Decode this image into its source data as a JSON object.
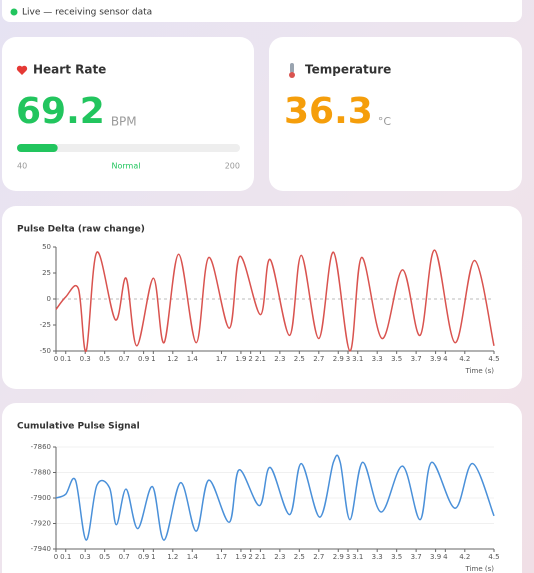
{
  "status": {
    "text": "Live — receiving sensor data"
  },
  "cards": {
    "heart_rate": {
      "title": "Heart Rate",
      "value": 69.2,
      "unit": "BPM",
      "min": 40,
      "max": 200,
      "status": "Normal"
    },
    "temperature": {
      "title": "Temperature",
      "value": 36.3,
      "unit": "°C"
    }
  },
  "chart_data": [
    {
      "type": "line",
      "title": "Pulse Delta (raw change)",
      "x_label": "Time (s)",
      "color": "#d9534f",
      "x": [
        0,
        0.1,
        0.23,
        0.31,
        0.42,
        0.61,
        0.72,
        0.83,
        1.0,
        1.11,
        1.26,
        1.44,
        1.57,
        1.78,
        1.89,
        2.1,
        2.2,
        2.4,
        2.52,
        2.7,
        2.85,
        3.02,
        3.14,
        3.35,
        3.56,
        3.74,
        3.89,
        4.1,
        4.3,
        4.5
      ],
      "values": [
        -10,
        2,
        10,
        -50,
        45,
        -20,
        20,
        -45,
        20,
        -42,
        43,
        -42,
        40,
        -28,
        41,
        -15,
        38,
        -35,
        42,
        -38,
        45,
        -50,
        40,
        -38,
        28,
        -35,
        47,
        -42,
        37,
        -45
      ],
      "xlim": [
        0,
        4.5
      ],
      "xticks": [
        0,
        0.1,
        0.3,
        0.5,
        0.7,
        0.9,
        1,
        1.2,
        1.4,
        1.7,
        1.9,
        2,
        2.1,
        2.3,
        2.5,
        2.7,
        2.9,
        3,
        3.1,
        3.3,
        3.5,
        3.7,
        3.9,
        4,
        4.2,
        4.5
      ],
      "ylim": [
        -50,
        50
      ],
      "yticks": [
        50,
        25,
        0,
        -25,
        -50
      ],
      "grid": false,
      "zero_line": true
    },
    {
      "type": "line",
      "title": "Cumulative Pulse Signal",
      "x_label": "Time (s)",
      "color": "#4a90d9",
      "x": [
        0,
        0.1,
        0.2,
        0.31,
        0.42,
        0.55,
        0.62,
        0.72,
        0.84,
        0.99,
        1.11,
        1.28,
        1.44,
        1.57,
        1.78,
        1.88,
        2.09,
        2.2,
        2.4,
        2.52,
        2.71,
        2.85,
        2.92,
        3.02,
        3.15,
        3.34,
        3.56,
        3.74,
        3.86,
        4.1,
        4.28,
        4.5
      ],
      "values": [
        -7900,
        -7897,
        -7886,
        -7933,
        -7890,
        -7892,
        -7921,
        -7893,
        -7924,
        -7891,
        -7933,
        -7888,
        -7926,
        -7886,
        -7919,
        -7878,
        -7906,
        -7876,
        -7913,
        -7873,
        -7915,
        -7872,
        -7872,
        -7917,
        -7872,
        -7911,
        -7875,
        -7917,
        -7872,
        -7908,
        -7873,
        -7914
      ],
      "xlim": [
        0,
        4.5
      ],
      "xticks": [
        0,
        0.1,
        0.3,
        0.5,
        0.7,
        0.9,
        1,
        1.2,
        1.4,
        1.7,
        1.9,
        2,
        2.1,
        2.3,
        2.5,
        2.7,
        2.9,
        3,
        3.1,
        3.3,
        3.5,
        3.7,
        3.9,
        4,
        4.2,
        4.5
      ],
      "ylim": [
        -7940,
        -7860
      ],
      "yticks": [
        -7860,
        -7880,
        -7900,
        -7920,
        -7940
      ],
      "grid": true,
      "zero_line": false
    }
  ]
}
